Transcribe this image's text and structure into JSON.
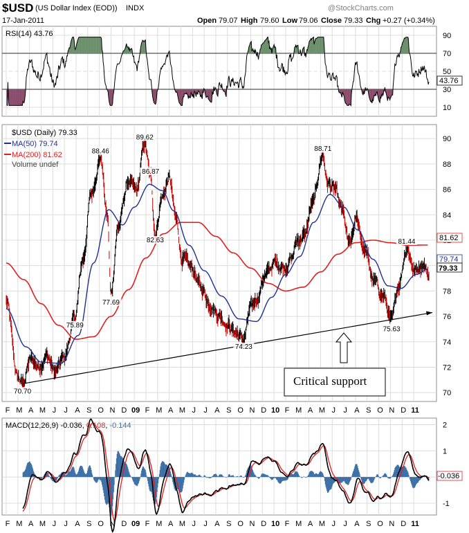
{
  "header": {
    "symbol": "$USD",
    "name": "(US Dollar Index (EOD))",
    "exchange": "INDX",
    "date": "17-Jan-2011",
    "copyright": "@StockCharts.com",
    "open_label": "Open",
    "open": "79.07",
    "high_label": "High",
    "high": "79.60",
    "low_label": "Low",
    "low": "79.06",
    "close_label": "Close",
    "close": "79.33",
    "chg_label": "Chg",
    "chg": "+0.27 (+0.34%)"
  },
  "rsi": {
    "legend": "RSI(14) 43.76",
    "last": "43.76",
    "ticks": [
      "90",
      "70",
      "50",
      "30",
      "10"
    ],
    "tick_values": [
      90,
      70,
      50,
      30,
      10
    ],
    "ylim": [
      0,
      100
    ],
    "overbought": 70,
    "oversold": 30,
    "colors": {
      "line": "#000000",
      "fill_ob": "#6b8e6b",
      "fill_os": "#8b4a6b"
    }
  },
  "price": {
    "legend_main": "$USD (Daily) 79.33",
    "legend_ma50": "MA(50) 79.74",
    "legend_ma200": "MA(200) 81.62",
    "legend_volume": "Volume undef",
    "last": "79.33",
    "ma50_last": "79.74",
    "ma200_last": "81.62",
    "ticks": [
      "90",
      "88",
      "86",
      "84",
      "82",
      "80",
      "78",
      "76",
      "74",
      "72",
      "70"
    ],
    "tick_values": [
      90,
      88,
      86,
      84,
      82,
      80,
      78,
      76,
      74,
      72,
      70
    ],
    "ylim": [
      69.3,
      91.1
    ],
    "colors": {
      "price": "#000000",
      "ma50": "#1f2f8f",
      "ma200": "#e02020",
      "wick": "#c00000"
    }
  },
  "chart_data": {
    "type": "line",
    "x_range_months": [
      0,
      36.6
    ],
    "anchors": [
      {
        "m": 0.0,
        "v": 77.2
      },
      {
        "m": 1.0,
        "v": 71.2
      },
      {
        "m": 1.4,
        "v": 70.7
      },
      {
        "m": 2.1,
        "v": 72.6
      },
      {
        "m": 2.8,
        "v": 72.1
      },
      {
        "m": 3.5,
        "v": 72.9
      },
      {
        "m": 4.2,
        "v": 71.6
      },
      {
        "m": 5.0,
        "v": 72.8
      },
      {
        "m": 5.9,
        "v": 75.9
      },
      {
        "m": 6.6,
        "v": 80.5
      },
      {
        "m": 7.3,
        "v": 85.6
      },
      {
        "m": 8.1,
        "v": 88.5
      },
      {
        "m": 8.7,
        "v": 83.8
      },
      {
        "m": 9.0,
        "v": 77.7
      },
      {
        "m": 9.6,
        "v": 83.0
      },
      {
        "m": 10.5,
        "v": 86.6
      },
      {
        "m": 11.2,
        "v": 85.8
      },
      {
        "m": 11.9,
        "v": 89.6
      },
      {
        "m": 12.4,
        "v": 86.9
      },
      {
        "m": 12.8,
        "v": 82.6
      },
      {
        "m": 13.4,
        "v": 85.4
      },
      {
        "m": 14.0,
        "v": 86.9
      },
      {
        "m": 14.6,
        "v": 83.6
      },
      {
        "m": 15.1,
        "v": 80.6
      },
      {
        "m": 15.9,
        "v": 79.8
      },
      {
        "m": 16.8,
        "v": 78.2
      },
      {
        "m": 17.5,
        "v": 77.0
      },
      {
        "m": 18.3,
        "v": 76.1
      },
      {
        "m": 19.0,
        "v": 75.4
      },
      {
        "m": 19.6,
        "v": 74.8
      },
      {
        "m": 20.4,
        "v": 74.2
      },
      {
        "m": 21.0,
        "v": 76.6
      },
      {
        "m": 21.6,
        "v": 77.5
      },
      {
        "m": 22.2,
        "v": 79.2
      },
      {
        "m": 23.1,
        "v": 80.2
      },
      {
        "m": 23.9,
        "v": 79.9
      },
      {
        "m": 24.5,
        "v": 80.5
      },
      {
        "m": 25.0,
        "v": 82.0
      },
      {
        "m": 25.6,
        "v": 82.3
      },
      {
        "m": 26.3,
        "v": 84.8
      },
      {
        "m": 27.2,
        "v": 88.7
      },
      {
        "m": 27.6,
        "v": 86.5
      },
      {
        "m": 28.2,
        "v": 86.0
      },
      {
        "m": 28.8,
        "v": 84.4
      },
      {
        "m": 29.5,
        "v": 81.6
      },
      {
        "m": 30.1,
        "v": 83.6
      },
      {
        "m": 30.8,
        "v": 81.2
      },
      {
        "m": 31.6,
        "v": 78.7
      },
      {
        "m": 32.4,
        "v": 77.6
      },
      {
        "m": 33.1,
        "v": 75.6
      },
      {
        "m": 33.7,
        "v": 78.5
      },
      {
        "m": 34.4,
        "v": 81.4
      },
      {
        "m": 35.1,
        "v": 79.6
      },
      {
        "m": 35.8,
        "v": 80.2
      },
      {
        "m": 36.3,
        "v": 79.3
      }
    ],
    "ma50_anchors": [
      {
        "m": 0.0,
        "v": 76.6
      },
      {
        "m": 1.7,
        "v": 73.6
      },
      {
        "m": 3.0,
        "v": 72.4
      },
      {
        "m": 4.7,
        "v": 72.3
      },
      {
        "m": 6.2,
        "v": 74.5
      },
      {
        "m": 7.5,
        "v": 80.2
      },
      {
        "m": 8.8,
        "v": 84.4
      },
      {
        "m": 10.0,
        "v": 83.2
      },
      {
        "m": 11.0,
        "v": 84.6
      },
      {
        "m": 12.3,
        "v": 86.4
      },
      {
        "m": 13.4,
        "v": 85.9
      },
      {
        "m": 14.4,
        "v": 84.3
      },
      {
        "m": 15.7,
        "v": 81.6
      },
      {
        "m": 17.0,
        "v": 79.6
      },
      {
        "m": 18.5,
        "v": 77.6
      },
      {
        "m": 20.0,
        "v": 75.8
      },
      {
        "m": 21.5,
        "v": 75.6
      },
      {
        "m": 22.8,
        "v": 77.5
      },
      {
        "m": 24.0,
        "v": 79.3
      },
      {
        "m": 25.2,
        "v": 80.7
      },
      {
        "m": 26.4,
        "v": 83.4
      },
      {
        "m": 27.8,
        "v": 85.6
      },
      {
        "m": 29.0,
        "v": 84.6
      },
      {
        "m": 30.2,
        "v": 82.8
      },
      {
        "m": 31.5,
        "v": 80.5
      },
      {
        "m": 32.8,
        "v": 78.4
      },
      {
        "m": 33.9,
        "v": 78.2
      },
      {
        "m": 35.2,
        "v": 79.3
      },
      {
        "m": 36.3,
        "v": 79.74
      }
    ],
    "ma200_anchors": [
      {
        "m": 0.0,
        "v": 80.2
      },
      {
        "m": 1.5,
        "v": 78.9
      },
      {
        "m": 3.0,
        "v": 77.0
      },
      {
        "m": 4.5,
        "v": 75.3
      },
      {
        "m": 6.0,
        "v": 74.2
      },
      {
        "m": 7.5,
        "v": 74.4
      },
      {
        "m": 9.0,
        "v": 76.0
      },
      {
        "m": 10.5,
        "v": 78.1
      },
      {
        "m": 12.0,
        "v": 80.6
      },
      {
        "m": 13.5,
        "v": 82.5
      },
      {
        "m": 15.0,
        "v": 83.4
      },
      {
        "m": 16.5,
        "v": 83.4
      },
      {
        "m": 18.0,
        "v": 82.3
      },
      {
        "m": 19.5,
        "v": 81.0
      },
      {
        "m": 21.0,
        "v": 79.8
      },
      {
        "m": 22.5,
        "v": 78.6
      },
      {
        "m": 24.0,
        "v": 78.0
      },
      {
        "m": 25.5,
        "v": 78.3
      },
      {
        "m": 27.0,
        "v": 79.5
      },
      {
        "m": 28.5,
        "v": 80.9
      },
      {
        "m": 30.0,
        "v": 81.8
      },
      {
        "m": 31.5,
        "v": 82.0
      },
      {
        "m": 33.0,
        "v": 81.8
      },
      {
        "m": 34.5,
        "v": 81.6
      },
      {
        "m": 36.3,
        "v": 81.62
      }
    ],
    "peak_labels": [
      {
        "m": 1.4,
        "v": 70.7,
        "text": "70.70",
        "pos": "below"
      },
      {
        "m": 5.9,
        "v": 75.9,
        "text": "75.89",
        "pos": "below"
      },
      {
        "m": 8.1,
        "v": 88.5,
        "text": "88.46",
        "pos": "above"
      },
      {
        "m": 9.0,
        "v": 77.7,
        "text": "77.69",
        "pos": "below"
      },
      {
        "m": 11.9,
        "v": 89.6,
        "text": "89.62",
        "pos": "above"
      },
      {
        "m": 12.4,
        "v": 86.9,
        "text": "86.87",
        "pos": "above"
      },
      {
        "m": 12.8,
        "v": 82.6,
        "text": "82.63",
        "pos": "below"
      },
      {
        "m": 20.4,
        "v": 74.2,
        "text": "74.23",
        "pos": "below"
      },
      {
        "m": 27.2,
        "v": 88.7,
        "text": "88.71",
        "pos": "above"
      },
      {
        "m": 33.1,
        "v": 75.6,
        "text": "75.63",
        "pos": "below"
      },
      {
        "m": 34.4,
        "v": 81.4,
        "text": "81.44",
        "pos": "above"
      }
    ],
    "support_line": {
      "from": {
        "m": 1.4,
        "v": 70.7
      },
      "to": {
        "m": 36.6,
        "v": 76.3
      }
    },
    "annotation": "Critical support",
    "x_labels": [
      {
        "m": 0.0,
        "t": "F"
      },
      {
        "m": 1.0,
        "t": "M"
      },
      {
        "m": 2.0,
        "t": "A"
      },
      {
        "m": 3.0,
        "t": "M"
      },
      {
        "m": 4.0,
        "t": "J"
      },
      {
        "m": 5.0,
        "t": "J"
      },
      {
        "m": 6.0,
        "t": "A"
      },
      {
        "m": 7.0,
        "t": "S"
      },
      {
        "m": 8.0,
        "t": "O"
      },
      {
        "m": 9.0,
        "t": "N"
      },
      {
        "m": 10.0,
        "t": "D"
      },
      {
        "m": 11.0,
        "t": "09",
        "bold": true
      },
      {
        "m": 12.0,
        "t": "F"
      },
      {
        "m": 13.0,
        "t": "M"
      },
      {
        "m": 14.0,
        "t": "A"
      },
      {
        "m": 15.0,
        "t": "M"
      },
      {
        "m": 16.0,
        "t": "J"
      },
      {
        "m": 17.0,
        "t": "J"
      },
      {
        "m": 18.0,
        "t": "A"
      },
      {
        "m": 19.0,
        "t": "S"
      },
      {
        "m": 20.0,
        "t": "O"
      },
      {
        "m": 21.0,
        "t": "N"
      },
      {
        "m": 22.0,
        "t": "D"
      },
      {
        "m": 23.0,
        "t": "10",
        "bold": true
      },
      {
        "m": 24.0,
        "t": "F"
      },
      {
        "m": 25.0,
        "t": "M"
      },
      {
        "m": 26.0,
        "t": "A"
      },
      {
        "m": 27.0,
        "t": "M"
      },
      {
        "m": 28.0,
        "t": "J"
      },
      {
        "m": 29.0,
        "t": "J"
      },
      {
        "m": 30.0,
        "t": "A"
      },
      {
        "m": 31.0,
        "t": "S"
      },
      {
        "m": 32.0,
        "t": "O"
      },
      {
        "m": 33.0,
        "t": "N"
      },
      {
        "m": 34.0,
        "t": "D"
      },
      {
        "m": 35.0,
        "t": "11",
        "bold": true
      }
    ]
  },
  "macd": {
    "legend_label": "MACD(12,26,9)",
    "macd_value": "-0.036",
    "signal_value": "0.108",
    "hist_value": "-0.144",
    "last": "-0.036",
    "ticks": [
      "2",
      "1",
      "0",
      "-1"
    ],
    "tick_values": [
      2,
      1,
      0,
      -1
    ],
    "ylim": [
      -1.45,
      2.25
    ],
    "colors": {
      "macd": "#000000",
      "signal": "#e02020",
      "hist": "#3a6ea5"
    }
  }
}
